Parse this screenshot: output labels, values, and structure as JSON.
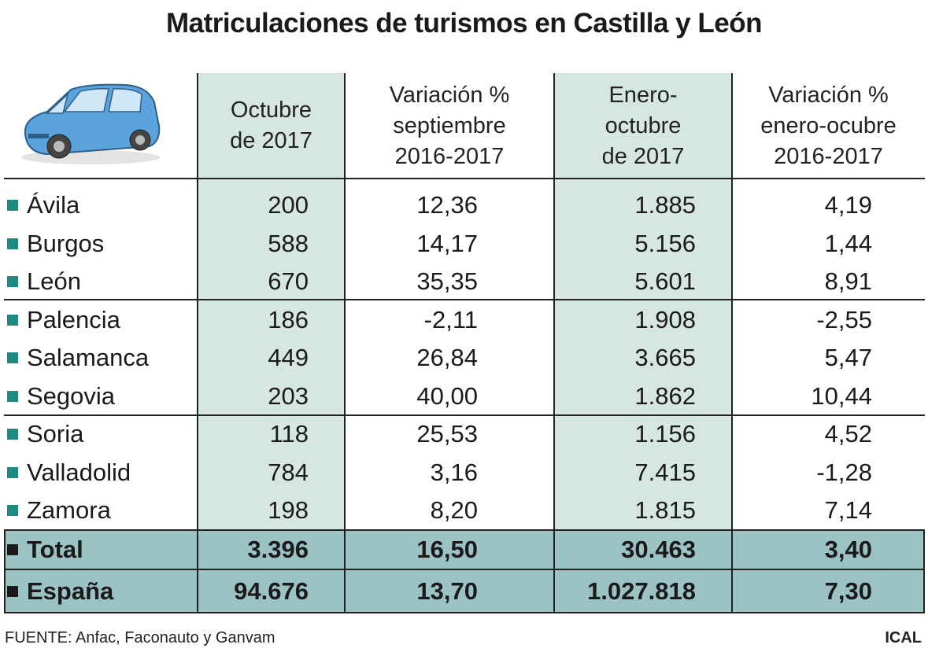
{
  "title": "Matriculaciones de turismos en Castilla y León",
  "header": [
    [
      "Octubre",
      "de 2017"
    ],
    [
      "Variación %",
      "septiembre",
      "2016-2017"
    ],
    [
      "Enero-",
      "octubre",
      "de 2017"
    ],
    [
      "Variación %",
      "enero-ocubre",
      "2016-2017"
    ]
  ],
  "rows": [
    [
      "Ávila",
      "200",
      "12,36",
      "1.885",
      "4,19"
    ],
    [
      "Burgos",
      "588",
      "14,17",
      "5.156",
      "1,44"
    ],
    [
      "León",
      "670",
      "35,35",
      "5.601",
      "8,91"
    ],
    [
      "Palencia",
      "186",
      "-2,11",
      "1.908",
      "-2,55"
    ],
    [
      "Salamanca",
      "449",
      "26,84",
      "3.665",
      "5,47"
    ],
    [
      "Segovia",
      "203",
      "40,00",
      "1.862",
      "10,44"
    ],
    [
      "Soria",
      "118",
      "25,53",
      "1.156",
      "4,52"
    ],
    [
      "Valladolid",
      "784",
      "3,16",
      "7.415",
      "-1,28"
    ],
    [
      "Zamora",
      "198",
      "8,20",
      "1.815",
      "7,14"
    ]
  ],
  "totals": [
    [
      "Total",
      "3.396",
      "16,50",
      "30.463",
      "3,40"
    ],
    [
      "España",
      "94.676",
      "13,70",
      "1.027.818",
      "7,30"
    ]
  ],
  "source": "FUENTE: Anfac, Faconauto y Ganvam",
  "credit": "ICAL"
}
